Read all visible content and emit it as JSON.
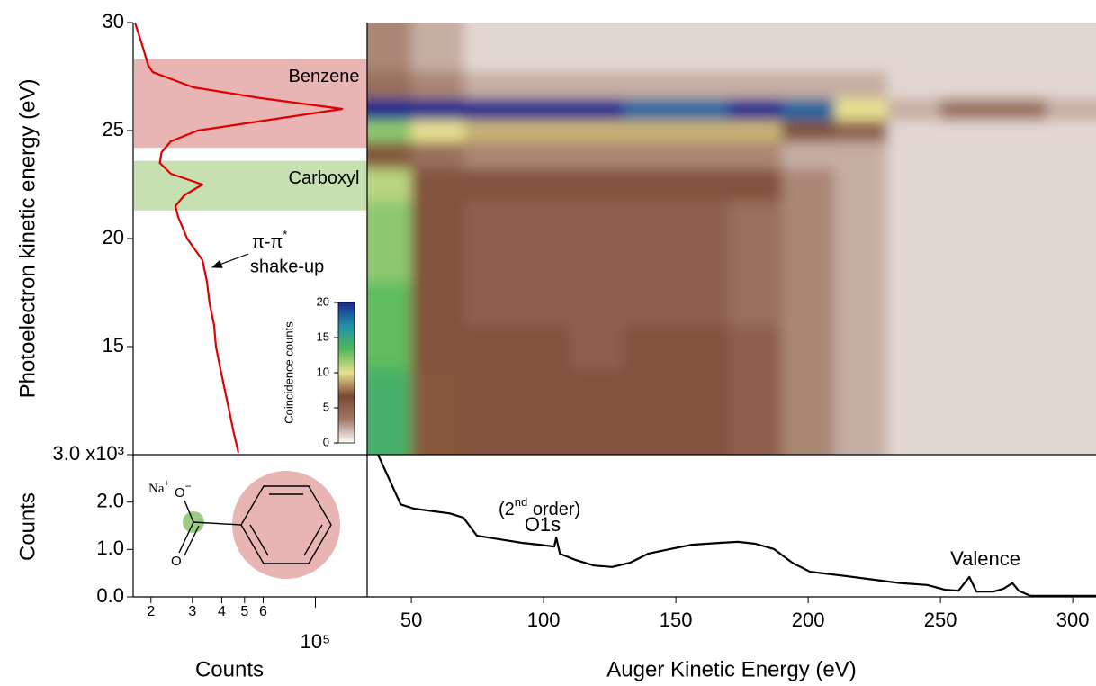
{
  "chart_data": [
    {
      "type": "line",
      "xlabel": "Counts",
      "ylabel": "Photoelectron kinetic energy (eV)",
      "xscale": "log",
      "xlim": [
        16800,
        166000
      ],
      "xticks": [
        {
          "value": 20000,
          "label": "2"
        },
        {
          "value": 30000,
          "label": "3"
        },
        {
          "value": 40000,
          "label": "4"
        },
        {
          "value": 50000,
          "label": "5"
        },
        {
          "value": 60000,
          "label": "6"
        },
        {
          "value": 100000,
          "label": "10⁵"
        }
      ],
      "ylim": [
        10,
        30
      ],
      "yticks": [
        15,
        20,
        25,
        30
      ],
      "color": "#e00000",
      "y": [
        30,
        29,
        28,
        27.7,
        27,
        26.5,
        26,
        25.5,
        25,
        24.5,
        24,
        23.5,
        23,
        22.5,
        22,
        21.5,
        21,
        20,
        19,
        18,
        17,
        16,
        15,
        14,
        13,
        12,
        11,
        10.1
      ],
      "values": [
        17100,
        18300,
        19500,
        20400,
        30300,
        58700,
        130000,
        64100,
        31600,
        24300,
        22200,
        21800,
        24300,
        33100,
        27700,
        25400,
        26100,
        28500,
        33100,
        34600,
        35500,
        37100,
        37800,
        39400,
        41200,
        43100,
        45000,
        47100
      ],
      "bands": [
        {
          "label": "Benzene",
          "range": [
            24.2,
            28.3
          ],
          "color": "#e8b4b4",
          "text_color": "#c00000"
        },
        {
          "label": "Carboxyl",
          "range": [
            21.3,
            23.6
          ],
          "color": "#c6e0b2",
          "text_color": "#4a6b30"
        }
      ],
      "annotation": {
        "text": "π-π",
        "sup": "*",
        "line2": "shake-up"
      }
    },
    {
      "type": "heatmap",
      "xlim": [
        33.3,
        308.8
      ],
      "ylim": [
        10,
        30
      ],
      "x": [
        40,
        60,
        80,
        100,
        120,
        140,
        160,
        180,
        200,
        220,
        240,
        260,
        280,
        300
      ],
      "y": [
        11,
        13,
        15,
        17,
        19,
        21,
        22.5,
        24,
        25,
        26,
        27,
        28.5
      ],
      "z": [
        [
          14,
          7,
          6,
          6,
          6,
          6,
          6,
          5,
          3,
          2,
          1,
          1,
          1,
          1
        ],
        [
          14,
          7,
          6,
          6,
          6,
          6,
          6,
          5,
          3,
          2,
          1,
          1,
          1,
          1
        ],
        [
          13,
          6,
          6,
          6,
          5,
          6,
          6,
          5,
          3,
          2,
          1,
          1,
          1,
          1
        ],
        [
          13,
          6,
          5,
          5,
          5,
          5,
          5,
          4,
          3,
          2,
          1,
          1,
          1,
          1
        ],
        [
          12,
          6,
          5,
          5,
          5,
          5,
          5,
          4,
          3,
          2,
          1,
          1,
          1,
          1
        ],
        [
          12,
          6,
          5,
          5,
          5,
          5,
          5,
          4,
          3,
          2,
          1,
          1,
          1,
          1
        ],
        [
          11,
          6,
          6,
          6,
          6,
          6,
          6,
          6,
          3,
          2,
          1,
          1,
          1,
          1
        ],
        [
          7,
          4,
          3,
          3,
          3,
          3,
          3,
          3,
          2,
          2,
          1,
          1,
          1,
          1
        ],
        [
          12,
          10,
          9,
          9,
          9,
          9,
          9,
          9,
          6,
          5,
          1,
          1,
          1,
          1
        ],
        [
          20,
          20,
          20,
          20,
          20,
          18,
          18,
          20,
          18,
          10,
          2,
          4,
          4,
          2
        ],
        [
          4,
          3,
          2,
          2,
          2,
          2,
          2,
          2,
          2,
          2,
          1,
          1,
          1,
          1
        ],
        [
          3,
          2,
          1,
          1,
          1,
          1,
          1,
          1,
          1,
          1,
          1,
          1,
          1,
          1
        ]
      ],
      "colorbar": {
        "label": "Coincidence counts",
        "lim": [
          0,
          20
        ],
        "ticks": [
          0,
          5,
          10,
          15,
          20
        ],
        "colors": [
          "#ffffff",
          "#a07866",
          "#7a4a34",
          "#e8e090",
          "#50b858",
          "#2090a8",
          "#1a2890"
        ]
      }
    },
    {
      "type": "line",
      "xlabel": "Auger Kinetic Energy (eV)",
      "ylabel": "Counts",
      "xlim": [
        33.3,
        308.8
      ],
      "xticks": [
        50,
        100,
        150,
        200,
        250,
        300
      ],
      "ylim": [
        0,
        3000
      ],
      "yticks": [
        {
          "value": 0,
          "label": "0.0"
        },
        {
          "value": 1000,
          "label": "1.0"
        },
        {
          "value": 2000,
          "label": "2.0"
        },
        {
          "value": 3000,
          "label": "3.0 x10³"
        }
      ],
      "color": "#000000",
      "x": [
        37.4,
        46,
        51,
        64.6,
        69.7,
        74.8,
        85,
        91.8,
        98.6,
        104,
        104.8,
        106.2,
        112,
        119,
        125.9,
        132.7,
        139.5,
        148,
        156,
        166.7,
        173.5,
        180,
        187,
        194,
        200.7,
        214,
        228,
        234.7,
        245,
        251.7,
        256.8,
        260.9,
        263.6,
        270,
        273.8,
        277.2,
        279.6,
        284,
        308.8
      ],
      "values": [
        3000,
        1950,
        1860,
        1760,
        1670,
        1290,
        1200,
        1140,
        1100,
        1060,
        1250,
        910,
        780,
        660,
        630,
        720,
        910,
        1010,
        1100,
        1140,
        1160,
        1120,
        1010,
        720,
        530,
        440,
        340,
        290,
        250,
        150,
        130,
        420,
        110,
        110,
        170,
        290,
        130,
        20,
        20
      ],
      "annotations": [
        {
          "text": "O1s",
          "pre": "(2",
          "sup": "nd",
          "post": " order)"
        },
        {
          "text": "Valence"
        }
      ]
    }
  ],
  "molecule": {
    "cation": "Na",
    "cation_charge": "+",
    "anion": "O",
    "anion_charge": "−",
    "carbonyl": "O"
  }
}
